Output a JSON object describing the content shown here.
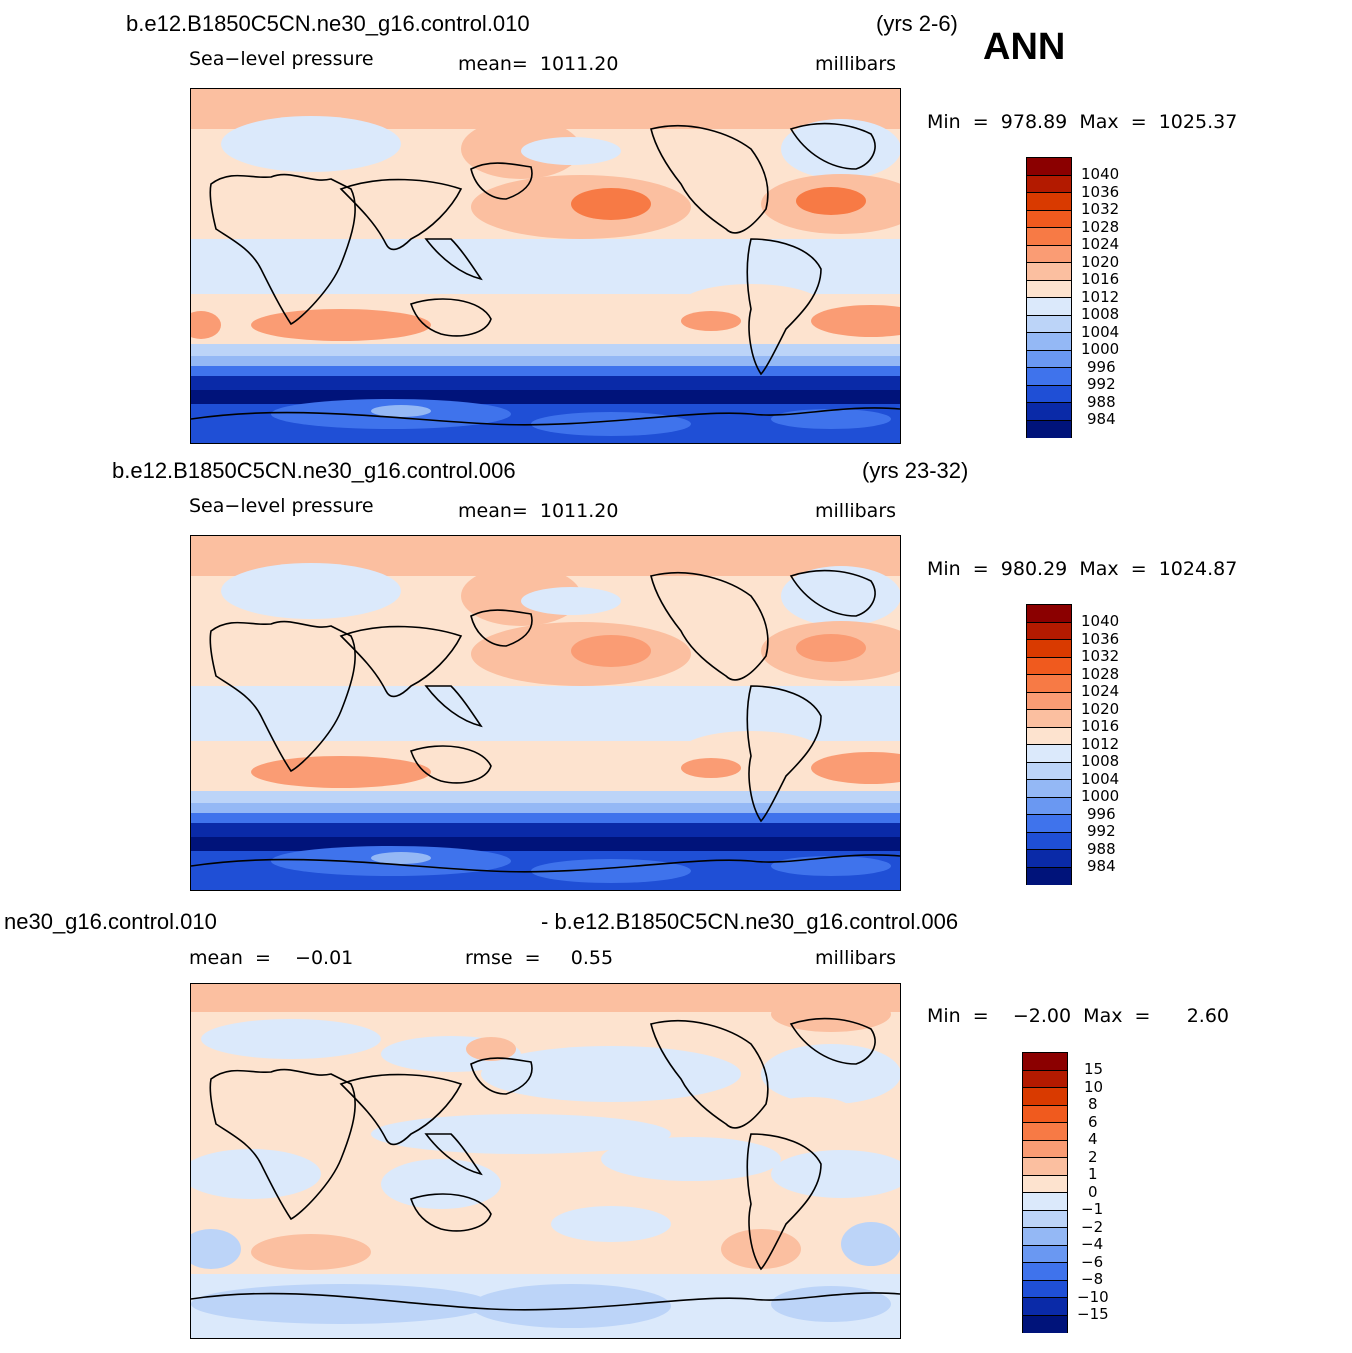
{
  "annual_label": "ANN",
  "panels": [
    {
      "case": "b.e12.B1850C5CN.ne30_g16.control.010",
      "years": "(yrs 2-6)",
      "variable": "Sea−level pressure",
      "mean": "mean=  1011.20",
      "units": "millibars",
      "minmax": "Min  =  978.89  Max  =  1025.37",
      "colorbar": [
        "1040",
        "1036",
        "1032",
        "1028",
        "1024",
        "1020",
        "1016",
        "1012",
        "1008",
        "1004",
        "1000",
        "996",
        "992",
        "988",
        "984"
      ]
    },
    {
      "case": "b.e12.B1850C5CN.ne30_g16.control.006",
      "years": "(yrs 23-32)",
      "variable": "Sea−level pressure",
      "mean": "mean=  1011.20",
      "units": "millibars",
      "minmax": "Min  =  980.29  Max  =  1024.87",
      "colorbar": [
        "1040",
        "1036",
        "1032",
        "1028",
        "1024",
        "1020",
        "1016",
        "1012",
        "1008",
        "1004",
        "1000",
        "996",
        "992",
        "988",
        "984"
      ]
    },
    {
      "case_left": "ne30_g16.control.010",
      "case_right": "- b.e12.B1850C5CN.ne30_g16.control.006",
      "mean": "mean  =    −0.01",
      "rmse": "rmse  =     0.55",
      "units": "millibars",
      "minmax": "Min  =    −2.00  Max  =      2.60",
      "colorbar": [
        "15",
        "10",
        "8",
        "6",
        "4",
        "2",
        "1",
        "0",
        "−1",
        "−2",
        "−4",
        "−6",
        "−8",
        "−10",
        "−15"
      ]
    }
  ],
  "colors": {
    "scale": [
      "#8b0000",
      "#b31a00",
      "#d93a00",
      "#f05a1e",
      "#f77a45",
      "#fa9c74",
      "#fbbfa0",
      "#fde3cf",
      "#dbe9fb",
      "#bcd4f8",
      "#94b8f5",
      "#6a98f2",
      "#3f73ec",
      "#1f4fd6",
      "#0a2aa8",
      "#00137a"
    ]
  }
}
